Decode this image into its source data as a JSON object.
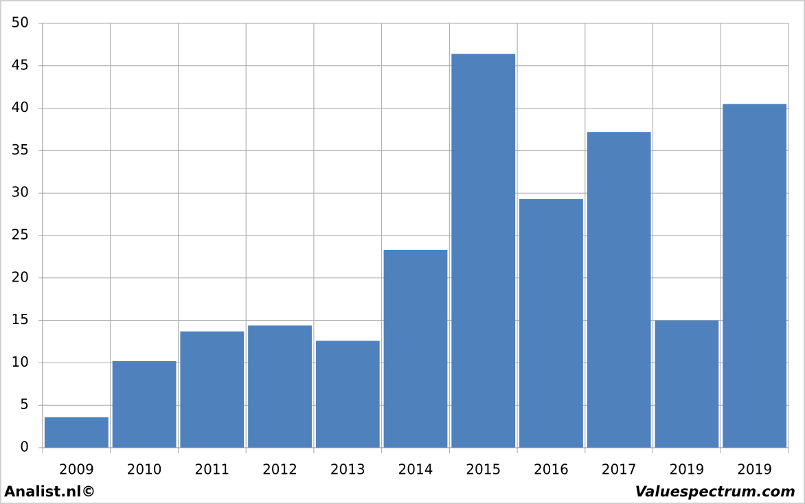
{
  "chart_data": {
    "type": "bar",
    "categories": [
      "2009",
      "2010",
      "2011",
      "2012",
      "2013",
      "2014",
      "2015",
      "2016",
      "2017",
      "2019",
      "2019"
    ],
    "values": [
      3.6,
      10.2,
      13.7,
      14.4,
      12.6,
      23.3,
      46.4,
      29.3,
      37.2,
      15.0,
      40.5
    ],
    "color": "#4f81bd",
    "ylim": [
      0,
      50
    ],
    "yticks": [
      0,
      5,
      10,
      15,
      20,
      25,
      30,
      35,
      40,
      45,
      50
    ],
    "grid": true,
    "footer_left": "Analist.nl©",
    "footer_right": "Valuespectrum.com"
  }
}
